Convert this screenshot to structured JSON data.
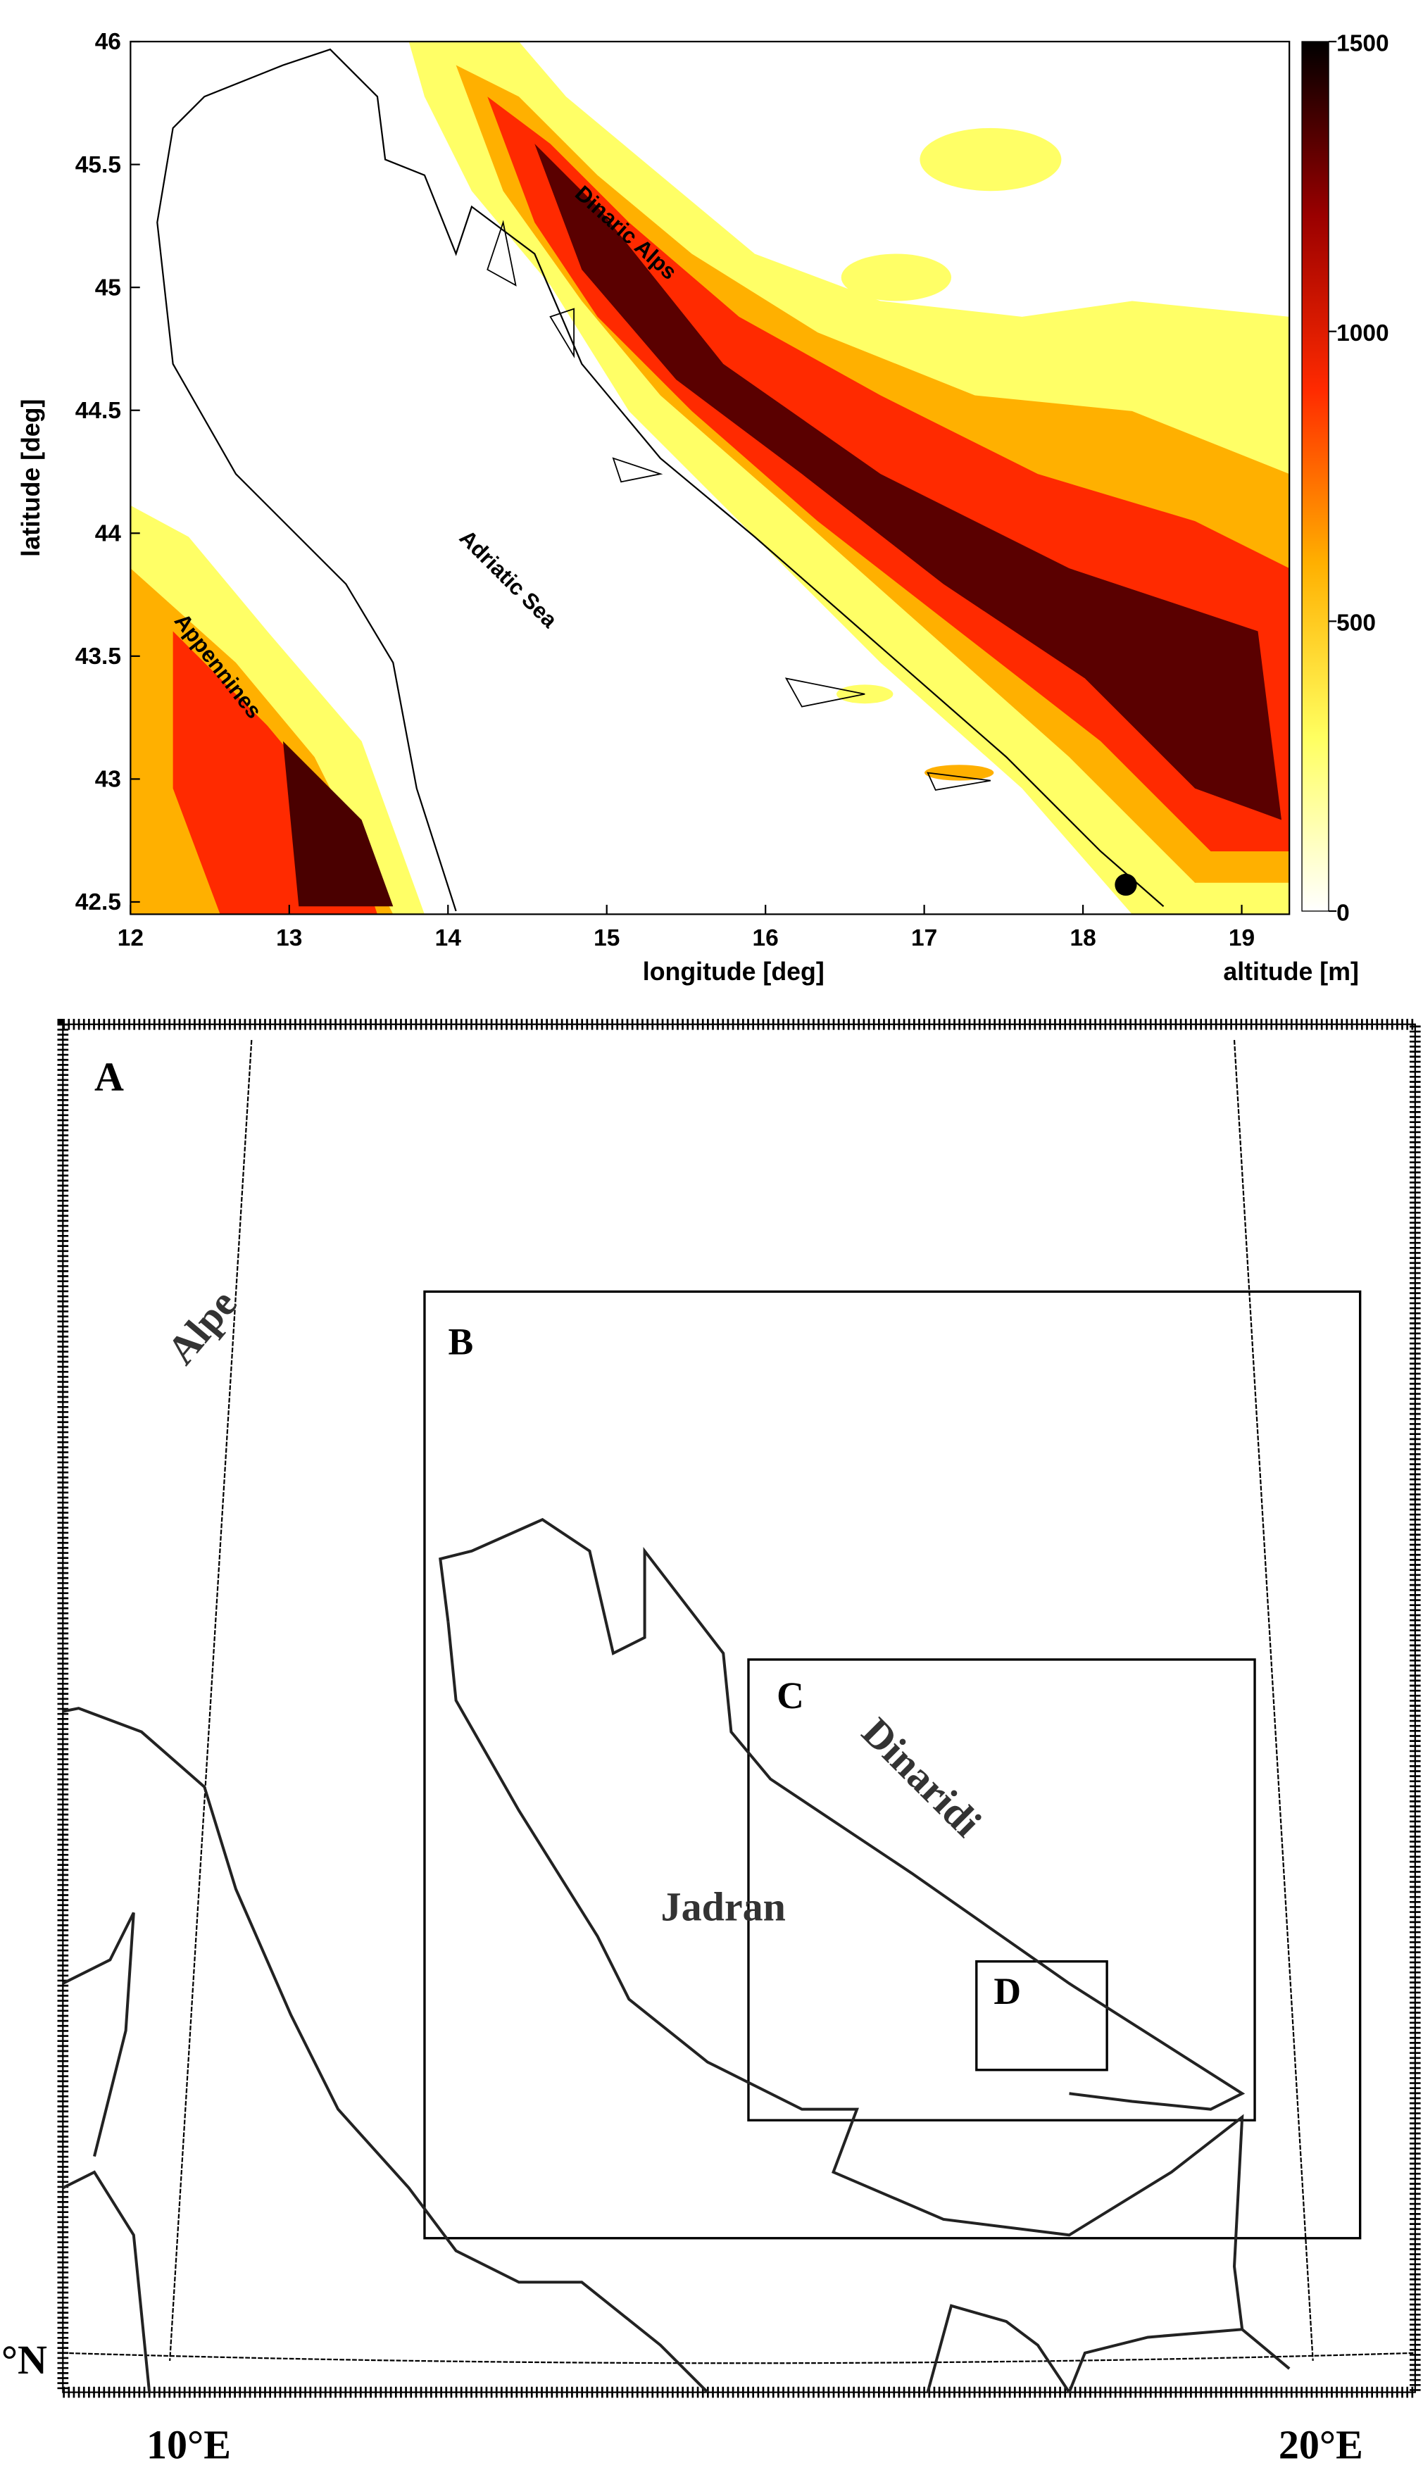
{
  "top_map": {
    "xlabel": "longitude [deg]",
    "ylabel": "latitude [deg]",
    "xlim": [
      12,
      19.3
    ],
    "ylim": [
      42.45,
      46
    ],
    "xticks": [
      12,
      13,
      14,
      15,
      16,
      17,
      18,
      19
    ],
    "yticks": [
      42.5,
      43,
      43.5,
      44,
      44.5,
      45,
      45.5,
      46
    ],
    "colorbar": {
      "label": "altitude [m]",
      "lim": [
        0,
        1500
      ],
      "ticks": [
        0,
        500,
        1000,
        1500
      ]
    },
    "annotations": [
      "Dinaric Alps",
      "Adriatic Sea",
      "Appennines"
    ],
    "marker": {
      "lon": 18.27,
      "lat": 42.57
    }
  },
  "domains_map": {
    "panels": [
      "A",
      "B",
      "C",
      "D"
    ],
    "places": [
      "Alpe",
      "Dinaridi",
      "Jadran"
    ],
    "lon_labels": [
      "10°E",
      "20°E"
    ],
    "lat_label": "°N"
  }
}
